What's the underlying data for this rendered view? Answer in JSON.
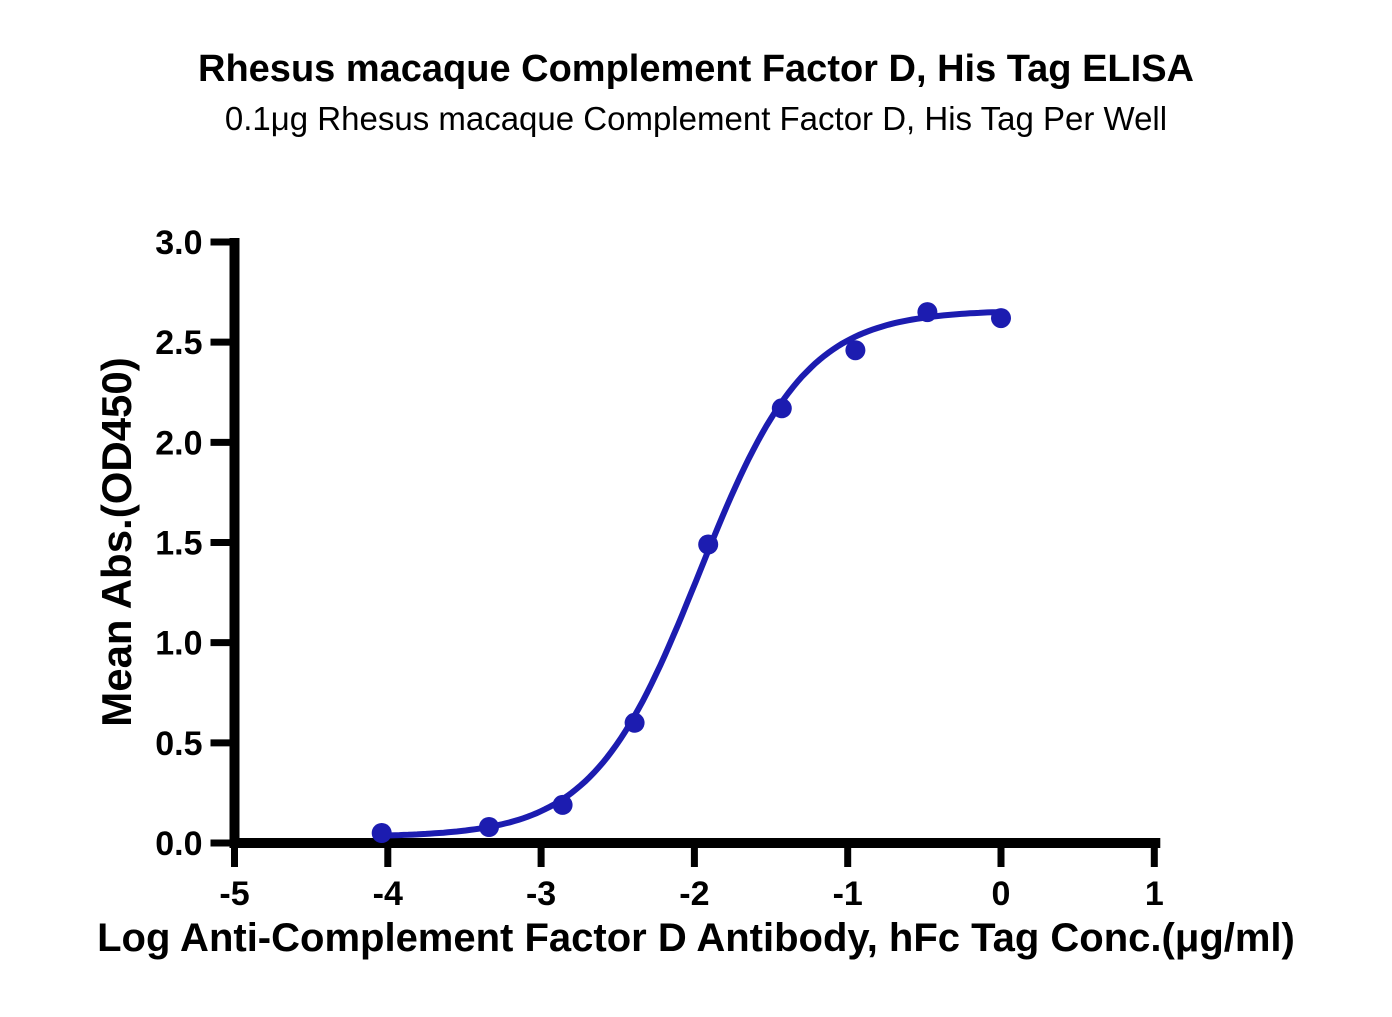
{
  "header": {
    "title": "Rhesus macaque Complement Factor D, His Tag ELISA",
    "subtitle": "0.1μg Rhesus macaque Complement Factor D, His Tag Per Well"
  },
  "chart_data": {
    "type": "scatter",
    "title": "Rhesus macaque Complement Factor D, His Tag ELISA",
    "subtitle": "0.1μg Rhesus macaque Complement Factor D, His Tag Per Well",
    "xlabel": "Log Anti-Complement Factor D Antibody, hFc Tag Conc.(μg/ml)",
    "ylabel": "Mean Abs.(OD450)",
    "xlim": [
      -5,
      1
    ],
    "ylim": [
      0,
      3
    ],
    "grid": false,
    "legend": false,
    "x_ticks": [
      {
        "value": -5,
        "label": "-5"
      },
      {
        "value": -4,
        "label": "-4"
      },
      {
        "value": -3,
        "label": "-3"
      },
      {
        "value": -2,
        "label": "-2"
      },
      {
        "value": -1,
        "label": "-1"
      },
      {
        "value": 0,
        "label": "0"
      },
      {
        "value": 1,
        "label": "1"
      }
    ],
    "y_ticks": [
      {
        "value": 0.0,
        "label": "0.0"
      },
      {
        "value": 0.5,
        "label": "0.5"
      },
      {
        "value": 1.0,
        "label": "1.0"
      },
      {
        "value": 1.5,
        "label": "1.5"
      },
      {
        "value": 2.0,
        "label": "2.0"
      },
      {
        "value": 2.5,
        "label": "2.5"
      },
      {
        "value": 3.0,
        "label": "3.0"
      }
    ],
    "points": [
      {
        "x": -4.04,
        "y": 0.05
      },
      {
        "x": -3.34,
        "y": 0.08
      },
      {
        "x": -2.86,
        "y": 0.19
      },
      {
        "x": -2.39,
        "y": 0.6
      },
      {
        "x": -1.91,
        "y": 1.49
      },
      {
        "x": -1.43,
        "y": 2.17
      },
      {
        "x": -0.95,
        "y": 2.46
      },
      {
        "x": -0.48,
        "y": 2.65
      },
      {
        "x": 0.0,
        "y": 2.62
      }
    ],
    "fit": {
      "model": "4PL",
      "bottom": 0.03,
      "top": 2.66,
      "log_ec50": -1.97,
      "hill": 1.25
    },
    "colors": {
      "curve": "#1c1cb0",
      "axis": "#000000",
      "text": "#000000"
    }
  }
}
